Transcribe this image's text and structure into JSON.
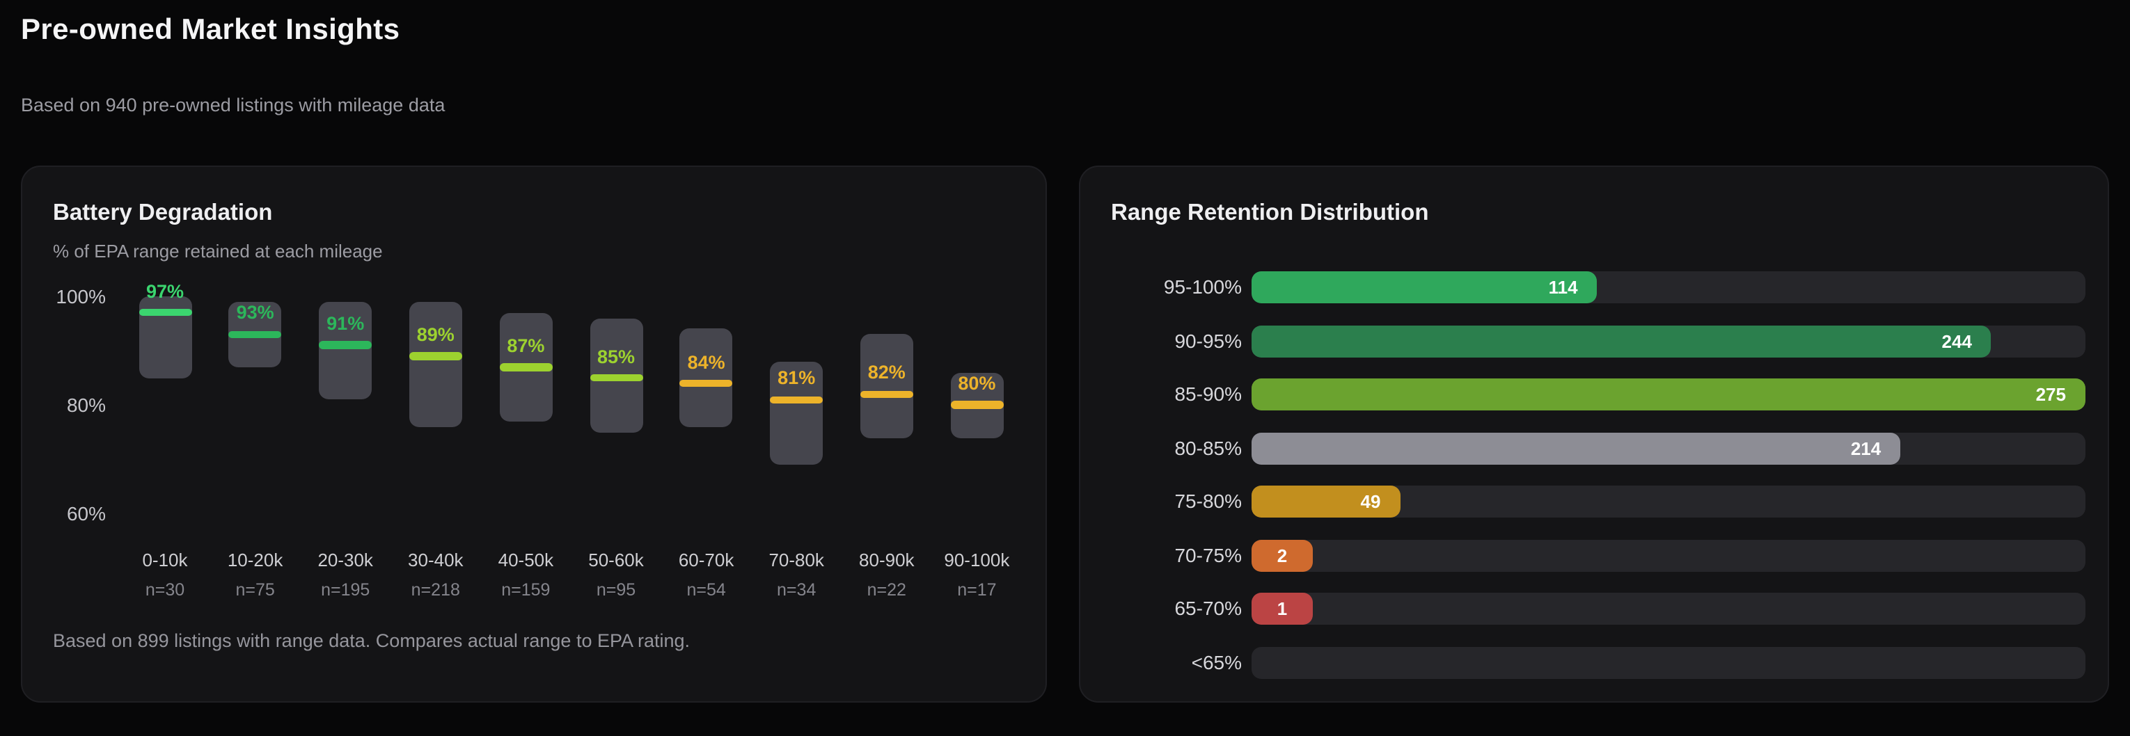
{
  "page": {
    "title": "Pre-owned Market Insights",
    "subtitle": "Based on 940 pre-owned listings with mileage data"
  },
  "chart_data": [
    {
      "type": "boxplot",
      "title": "Battery Degradation",
      "subtitle": "% of EPA range retained at each mileage",
      "footnote": "Based on 899 listings with range data. Compares actual range to EPA rating.",
      "unit": "%",
      "y_ticks": [
        100,
        80,
        60
      ],
      "ylim": [
        55,
        105
      ],
      "grid": false,
      "categories": [
        "0-10k",
        "10-20k",
        "20-30k",
        "30-40k",
        "40-50k",
        "50-60k",
        "60-70k",
        "70-80k",
        "80-90k",
        "90-100k"
      ],
      "sample_sizes": [
        30,
        75,
        195,
        218,
        159,
        95,
        54,
        34,
        22,
        17
      ],
      "medians": [
        97,
        93,
        91,
        89,
        87,
        85,
        84,
        81,
        82,
        80
      ],
      "ranges": [
        [
          85,
          100
        ],
        [
          87,
          99
        ],
        [
          81,
          99
        ],
        [
          76,
          99
        ],
        [
          77,
          97
        ],
        [
          75,
          96
        ],
        [
          76,
          94
        ],
        [
          69,
          88
        ],
        [
          74,
          93
        ],
        [
          74,
          86
        ]
      ],
      "colors": [
        "#3bd56f",
        "#2cb75b",
        "#2cb75b",
        "#9dd22f",
        "#9dd22f",
        "#9dd22f",
        "#edb32a",
        "#edb32a",
        "#edb32a",
        "#edb32a"
      ],
      "box_color": "#45454d"
    },
    {
      "type": "bar",
      "orientation": "horizontal",
      "title": "Range Retention Distribution",
      "categories": [
        "95-100%",
        "90-95%",
        "85-90%",
        "80-85%",
        "75-80%",
        "70-75%",
        "65-70%",
        "<65%"
      ],
      "values": [
        114,
        244,
        275,
        214,
        49,
        2,
        1,
        0
      ],
      "colors": [
        "#2fa85c",
        "#2b7f4d",
        "#6ba32f",
        "#8d8d95",
        "#c28f1e",
        "#cf6a2e",
        "#bb4444",
        "#26262a"
      ],
      "xlim": [
        0,
        275
      ],
      "track_color": "#26262a",
      "legend": "none"
    }
  ]
}
